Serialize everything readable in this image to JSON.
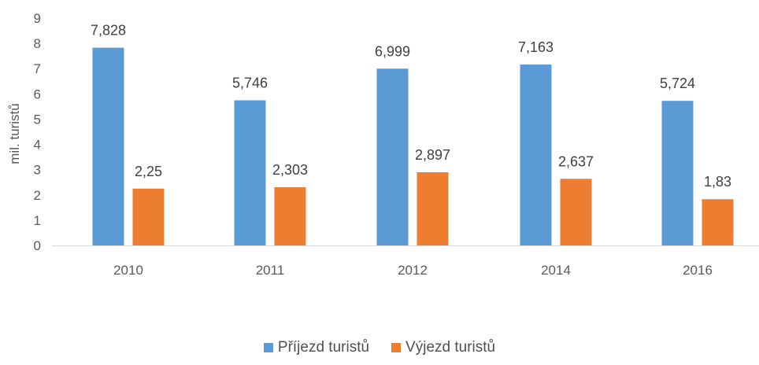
{
  "chart_data": {
    "type": "bar",
    "title": "",
    "xlabel": "",
    "ylabel": "mil. turistů",
    "ylim": [
      0,
      9
    ],
    "yticks": [
      "0",
      "1",
      "2",
      "3",
      "4",
      "5",
      "6",
      "7",
      "8",
      "9"
    ],
    "grid": false,
    "legend_position": "bottom",
    "categories": [
      "2010",
      "2011",
      "2012",
      "2014",
      "2016"
    ],
    "series": [
      {
        "name": "Příjezd turistů",
        "color": "#5B9BD5",
        "values": [
          7.828,
          5.746,
          6.999,
          7.163,
          5.724
        ],
        "labels": [
          "7,828",
          "5,746",
          "6,999",
          "7,163",
          "5,724"
        ]
      },
      {
        "name": "Výjezd turistů",
        "color": "#ED7D31",
        "values": [
          2.25,
          2.303,
          2.897,
          2.637,
          1.83
        ],
        "labels": [
          "2,25",
          "2,303",
          "2,897",
          "2,637",
          "1,83"
        ]
      }
    ]
  }
}
